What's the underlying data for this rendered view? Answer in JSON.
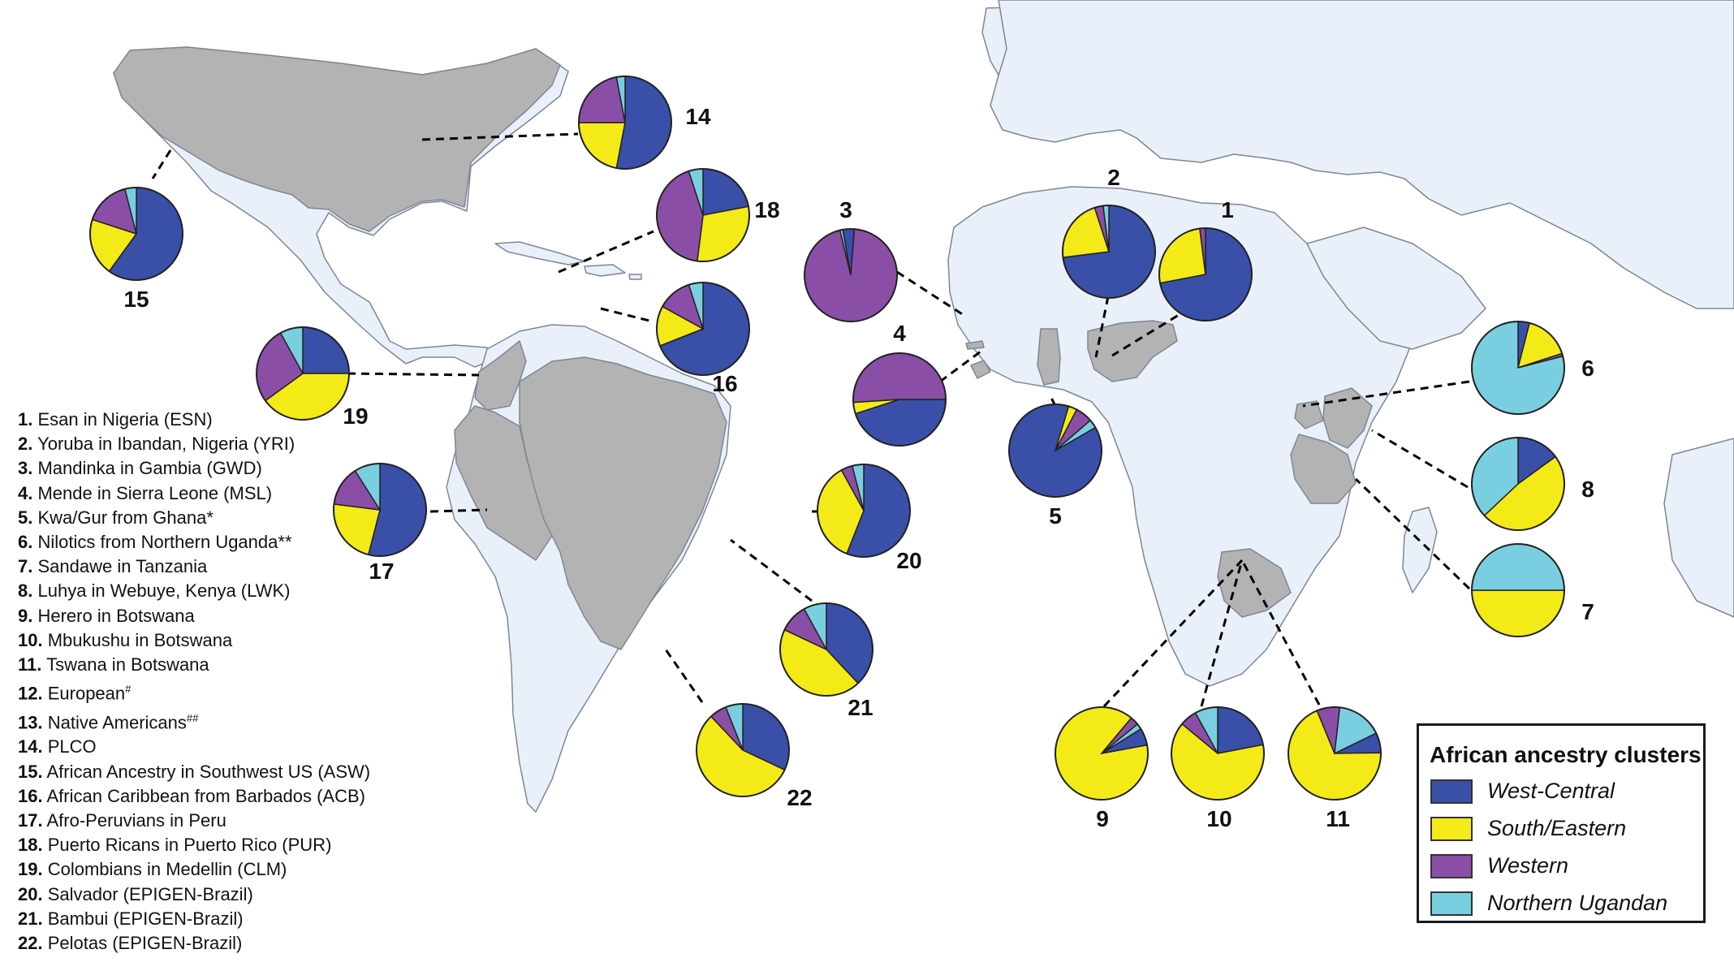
{
  "colors": {
    "west_central": "#3a4fa8",
    "south_eastern": "#f4ea18",
    "western": "#8b4ea6",
    "northern_ugandan": "#79cfe0",
    "ocean": "#ffffff",
    "land": "#e9f0f9",
    "sampled_country": "#b3b3b3",
    "border": "#7d8794"
  },
  "populations": [
    {
      "num": "1.",
      "name": "Esan in Nigeria (ESN)",
      "sup": ""
    },
    {
      "num": "2.",
      "name": "Yoruba in Ibandan, Nigeria (YRI)",
      "sup": ""
    },
    {
      "num": "3.",
      "name": "Mandinka in Gambia (GWD)",
      "sup": ""
    },
    {
      "num": "4.",
      "name": "Mende in Sierra Leone (MSL)",
      "sup": ""
    },
    {
      "num": "5.",
      "name": "Kwa/Gur from Ghana*",
      "sup": ""
    },
    {
      "num": "6.",
      "name": "Nilotics from Northern Uganda**",
      "sup": ""
    },
    {
      "num": "7.",
      "name": "Sandawe in Tanzania",
      "sup": ""
    },
    {
      "num": "8.",
      "name": "Luhya in Webuye, Kenya (LWK)",
      "sup": ""
    },
    {
      "num": "9.",
      "name": "Herero in Botswana",
      "sup": ""
    },
    {
      "num": "10.",
      "name": "Mbukushu in Botswana",
      "sup": ""
    },
    {
      "num": "11.",
      "name": "Tswana in Botswana",
      "sup": ""
    },
    {
      "num": "12.",
      "name": "European",
      "sup": "#"
    },
    {
      "num": "13.",
      "name": "Native Americans",
      "sup": "##"
    },
    {
      "num": "14.",
      "name": "PLCO",
      "sup": ""
    },
    {
      "num": "15.",
      "name": "African Ancestry in Southwest US (ASW)",
      "sup": ""
    },
    {
      "num": "16.",
      "name": "African Caribbean from Barbados (ACB)",
      "sup": ""
    },
    {
      "num": "17.",
      "name": "Afro-Peruvians in Peru",
      "sup": ""
    },
    {
      "num": "18.",
      "name": "Puerto Ricans in Puerto Rico (PUR)",
      "sup": ""
    },
    {
      "num": "19.",
      "name": "Colombians in Medellin (CLM)",
      "sup": ""
    },
    {
      "num": "20.",
      "name": "Salvador (EPIGEN-Brazil)",
      "sup": ""
    },
    {
      "num": "21.",
      "name": "Bambui (EPIGEN-Brazil)",
      "sup": ""
    },
    {
      "num": "22.",
      "name": "Pelotas (EPIGEN-Brazil)",
      "sup": ""
    }
  ],
  "legend": {
    "title": "African ancestry clusters",
    "items": [
      {
        "label": "West-Central",
        "key": "west_central"
      },
      {
        "label": "South/Eastern",
        "key": "south_eastern"
      },
      {
        "label": "Western",
        "key": "western"
      },
      {
        "label": "Northern Ugandan",
        "key": "northern_ugandan"
      }
    ]
  },
  "pies": [
    {
      "label": "1",
      "west_central": 0.72,
      "south_eastern": 0.26,
      "western": 0.02,
      "northern_ugandan": 0.0
    },
    {
      "label": "2",
      "west_central": 0.73,
      "south_eastern": 0.22,
      "western": 0.03,
      "northern_ugandan": 0.02
    },
    {
      "label": "3",
      "west_central": 0.04,
      "south_eastern": 0.0,
      "western": 0.95,
      "northern_ugandan": 0.01
    },
    {
      "label": "4",
      "west_central": 0.45,
      "south_eastern": 0.04,
      "western": 0.51,
      "northern_ugandan": 0.0
    },
    {
      "label": "5",
      "west_central": 0.88,
      "south_eastern": 0.03,
      "western": 0.06,
      "northern_ugandan": 0.03
    },
    {
      "label": "6",
      "west_central": 0.04,
      "south_eastern": 0.16,
      "western": 0.01,
      "northern_ugandan": 0.79
    },
    {
      "label": "7",
      "west_central": 0.0,
      "south_eastern": 0.5,
      "western": 0.0,
      "northern_ugandan": 0.5
    },
    {
      "label": "8",
      "west_central": 0.15,
      "south_eastern": 0.48,
      "western": 0.0,
      "northern_ugandan": 0.37
    },
    {
      "label": "9",
      "west_central": 0.06,
      "south_eastern": 0.89,
      "western": 0.03,
      "northern_ugandan": 0.02
    },
    {
      "label": "10",
      "west_central": 0.22,
      "south_eastern": 0.64,
      "western": 0.06,
      "northern_ugandan": 0.08
    },
    {
      "label": "11",
      "west_central": 0.07,
      "south_eastern": 0.69,
      "western": 0.08,
      "northern_ugandan": 0.16
    },
    {
      "label": "14",
      "west_central": 0.53,
      "south_eastern": 0.22,
      "western": 0.22,
      "northern_ugandan": 0.03
    },
    {
      "label": "15",
      "west_central": 0.6,
      "south_eastern": 0.2,
      "western": 0.16,
      "northern_ugandan": 0.04
    },
    {
      "label": "16",
      "west_central": 0.69,
      "south_eastern": 0.14,
      "western": 0.12,
      "northern_ugandan": 0.05
    },
    {
      "label": "17",
      "west_central": 0.54,
      "south_eastern": 0.23,
      "western": 0.14,
      "northern_ugandan": 0.09
    },
    {
      "label": "18",
      "west_central": 0.22,
      "south_eastern": 0.3,
      "western": 0.43,
      "northern_ugandan": 0.05
    },
    {
      "label": "19",
      "west_central": 0.25,
      "south_eastern": 0.4,
      "western": 0.27,
      "northern_ugandan": 0.08
    },
    {
      "label": "20",
      "west_central": 0.56,
      "south_eastern": 0.36,
      "western": 0.04,
      "northern_ugandan": 0.04
    },
    {
      "label": "21",
      "west_central": 0.38,
      "south_eastern": 0.44,
      "western": 0.1,
      "northern_ugandan": 0.08
    },
    {
      "label": "22",
      "west_central": 0.32,
      "south_eastern": 0.56,
      "western": 0.06,
      "northern_ugandan": 0.06
    }
  ]
}
